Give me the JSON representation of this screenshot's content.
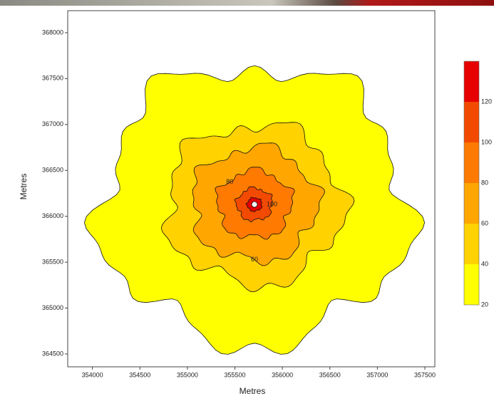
{
  "chart_data": {
    "type": "contour",
    "xlabel": "Metres",
    "ylabel": "Metres",
    "xlim": [
      353740,
      357605
    ],
    "ylim": [
      364360,
      368240
    ],
    "xticks": [
      354000,
      354500,
      355000,
      355500,
      356000,
      356500,
      357000,
      357500
    ],
    "yticks": [
      364500,
      365000,
      365500,
      366000,
      366500,
      367000,
      367500,
      368000
    ],
    "levels": [
      20,
      40,
      60,
      80,
      100,
      120
    ],
    "colors": [
      "#ffff00",
      "#ffd200",
      "#ffa600",
      "#ff7a00",
      "#f24a00",
      "#e60000"
    ],
    "clim": [
      20,
      140
    ],
    "contour_labels": [
      60,
      80,
      100
    ]
  }
}
